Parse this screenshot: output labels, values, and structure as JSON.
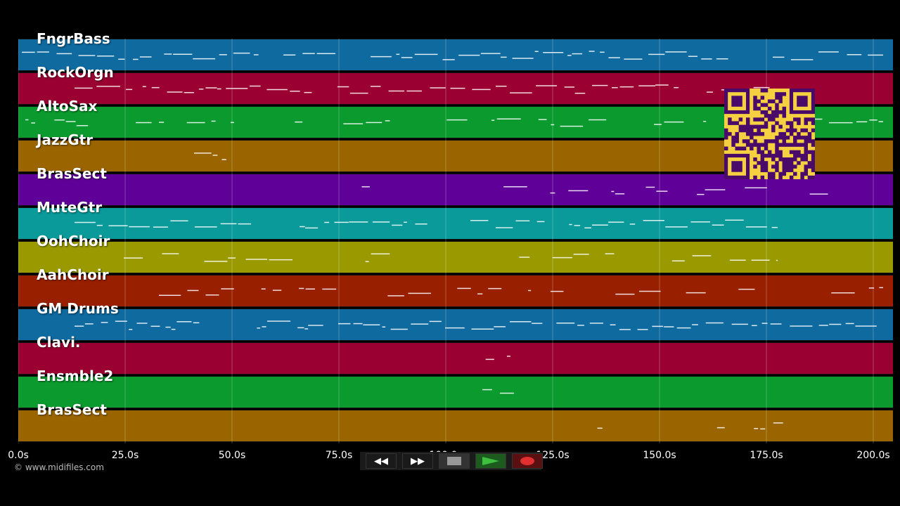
{
  "tracks": [
    {
      "name": "FngrBass",
      "color": "#0f6aa0"
    },
    {
      "name": "RockOrgn",
      "color": "#9b0033"
    },
    {
      "name": "AltoSax",
      "color": "#0a9a2e"
    },
    {
      "name": "JazzGtr",
      "color": "#9a6400"
    },
    {
      "name": "BrasSect",
      "color": "#5f0098"
    },
    {
      "name": "MuteGtr",
      "color": "#0a9a9a"
    },
    {
      "name": "OohChoir",
      "color": "#9a9a00"
    },
    {
      "name": "AahChoir",
      "color": "#982000"
    },
    {
      "name": "GM Drums",
      "color": "#0f6aa0"
    },
    {
      "name": "Clavi.",
      "color": "#9b0033"
    },
    {
      "name": "Ensmble2",
      "color": "#0a9a2e"
    },
    {
      "name": "BrasSect",
      "color": "#9a6400"
    }
  ],
  "timeline": {
    "ticks": [
      "0.0s",
      "25.0s",
      "50.0s",
      "75.0s",
      "100.0s",
      "125.0s",
      "150.0s",
      "175.0s",
      "200.0s"
    ],
    "max_seconds": 205
  },
  "credit": "© www.midifiles.com",
  "transport": {
    "rewind": "◀◀",
    "forward": "▶▶",
    "stop_color": "#999999",
    "play_color": "#3fbf3f",
    "record_color": "#e03030"
  },
  "qr_color": "#4a0a6a"
}
